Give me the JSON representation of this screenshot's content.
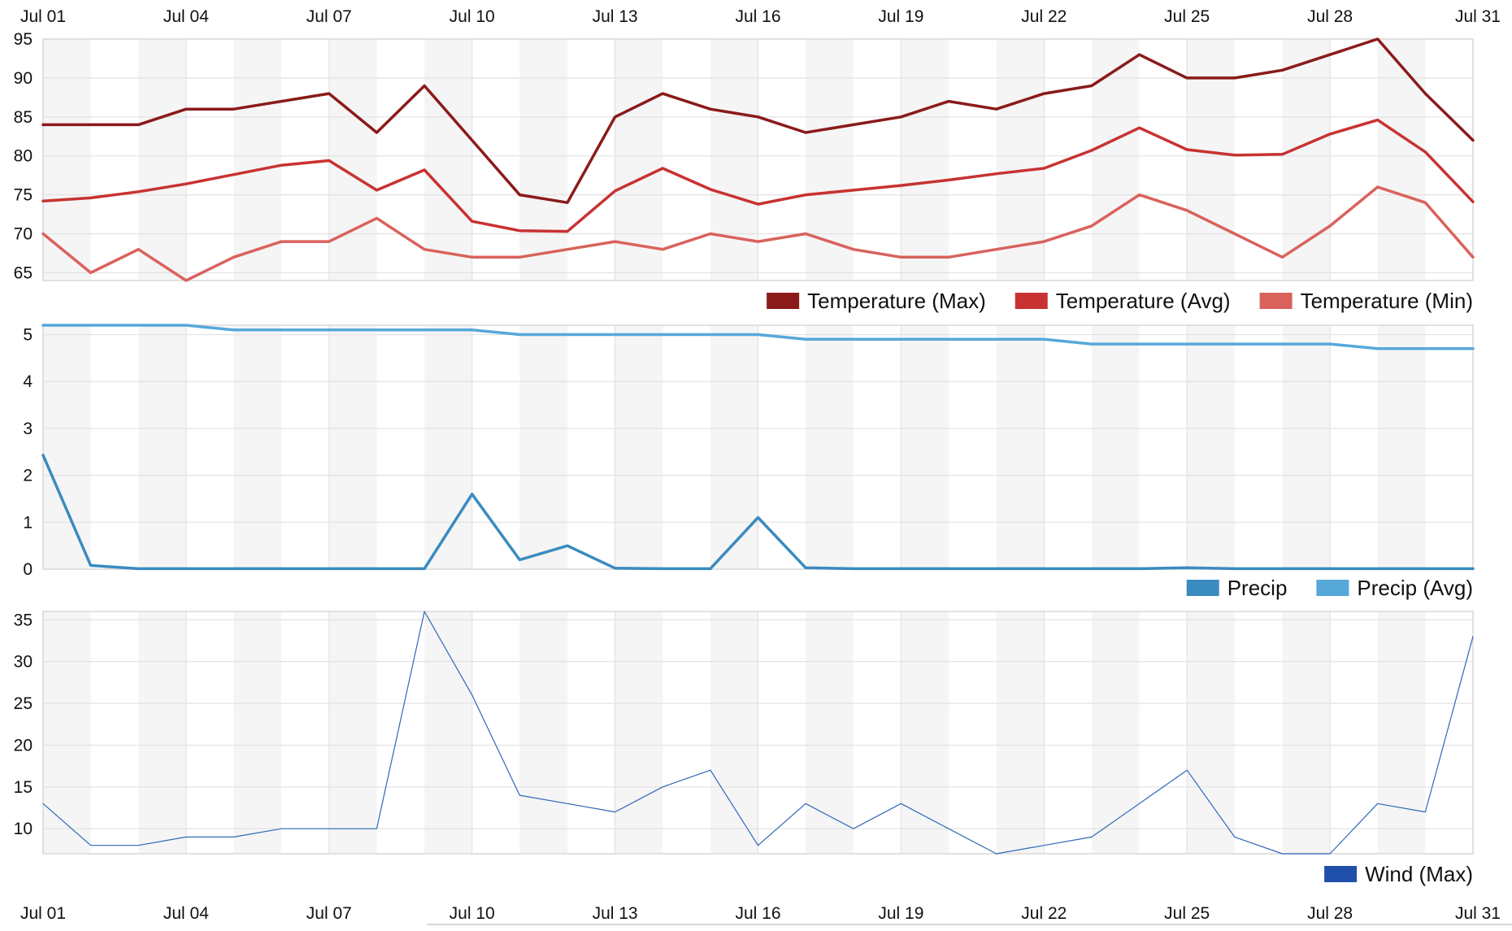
{
  "x_labels": [
    "Jul 01",
    "Jul 04",
    "Jul 07",
    "Jul 10",
    "Jul 13",
    "Jul 16",
    "Jul 19",
    "Jul 22",
    "Jul 25",
    "Jul 28",
    "Jul 31"
  ],
  "chart_data": [
    {
      "type": "line",
      "title": "",
      "xlabel": "",
      "ylabel": "",
      "x": [
        1,
        2,
        3,
        4,
        5,
        6,
        7,
        8,
        9,
        10,
        11,
        12,
        13,
        14,
        15,
        16,
        17,
        18,
        19,
        20,
        21,
        22,
        23,
        24,
        25,
        26,
        27,
        28,
        29,
        30,
        31
      ],
      "x_ticks": [
        "Jul 01",
        "Jul 04",
        "Jul 07",
        "Jul 10",
        "Jul 13",
        "Jul 16",
        "Jul 19",
        "Jul 22",
        "Jul 25",
        "Jul 28",
        "Jul 31"
      ],
      "ylim": [
        64,
        95
      ],
      "y_ticks": [
        65,
        70,
        75,
        80,
        85,
        90,
        95
      ],
      "grid": true,
      "legend": "bottom-right",
      "series": [
        {
          "name": "Temperature (Max)",
          "color": "#8b1a1a",
          "width": 3.5,
          "values": [
            84,
            84,
            84,
            86,
            86,
            87,
            88,
            83,
            89,
            82,
            75,
            74,
            85,
            88,
            86,
            85,
            83,
            84,
            85,
            87,
            86,
            88,
            89,
            93,
            90,
            90,
            91,
            93,
            95,
            88,
            82
          ]
        },
        {
          "name": "Temperature (Avg)",
          "color": "#c83232",
          "width": 3.5,
          "values": [
            74.2,
            74.6,
            75.4,
            76.4,
            77.6,
            78.8,
            79.4,
            75.6,
            78.2,
            71.6,
            70.4,
            70.3,
            75.5,
            78.4,
            75.7,
            73.8,
            75.0,
            75.6,
            76.2,
            76.9,
            77.7,
            78.4,
            80.7,
            83.6,
            80.8,
            80.1,
            80.2,
            82.8,
            84.6,
            80.5,
            74.1
          ]
        },
        {
          "name": "Temperature (Min)",
          "color": "#d9625c",
          "width": 3.5,
          "values": [
            70,
            65,
            68,
            64,
            67,
            69,
            69,
            72,
            68,
            67,
            67,
            68,
            69,
            68,
            70,
            69,
            70,
            68,
            67,
            67,
            68,
            69,
            71,
            75,
            73,
            70,
            67,
            71,
            76,
            74,
            67
          ]
        }
      ]
    },
    {
      "type": "line",
      "title": "",
      "xlabel": "",
      "ylabel": "",
      "x": [
        1,
        2,
        3,
        4,
        5,
        6,
        7,
        8,
        9,
        10,
        11,
        12,
        13,
        14,
        15,
        16,
        17,
        18,
        19,
        20,
        21,
        22,
        23,
        24,
        25,
        26,
        27,
        28,
        29,
        30,
        31
      ],
      "ylim": [
        0,
        5.2
      ],
      "y_ticks": [
        0,
        1,
        2,
        3,
        4,
        5
      ],
      "grid": true,
      "legend": "bottom-right",
      "series": [
        {
          "name": "Precip",
          "color": "#3a8bbf",
          "width": 3.5,
          "values": [
            2.43,
            0.08,
            0.01,
            0.01,
            0.01,
            0.01,
            0.01,
            0.01,
            0.01,
            1.6,
            0.2,
            0.5,
            0.02,
            0.01,
            0.01,
            1.1,
            0.03,
            0.01,
            0.01,
            0.01,
            0.01,
            0.01,
            0.01,
            0.01,
            0.03,
            0.01,
            0.01,
            0.01,
            0.01,
            0.01,
            0.01
          ]
        },
        {
          "name": "Precip (Avg)",
          "color": "#56a8d9",
          "width": 3.5,
          "values": [
            5.2,
            5.2,
            5.2,
            5.2,
            5.1,
            5.1,
            5.1,
            5.1,
            5.1,
            5.1,
            5.0,
            5.0,
            5.0,
            5.0,
            5.0,
            5.0,
            4.9,
            4.9,
            4.9,
            4.9,
            4.9,
            4.9,
            4.8,
            4.8,
            4.8,
            4.8,
            4.8,
            4.8,
            4.7,
            4.7,
            4.7
          ]
        }
      ]
    },
    {
      "type": "line",
      "title": "",
      "xlabel": "",
      "ylabel": "",
      "x": [
        1,
        2,
        3,
        4,
        5,
        6,
        7,
        8,
        9,
        10,
        11,
        12,
        13,
        14,
        15,
        16,
        17,
        18,
        19,
        20,
        21,
        22,
        23,
        24,
        25,
        26,
        27,
        28,
        29,
        30,
        31
      ],
      "ylim": [
        7,
        36
      ],
      "y_ticks": [
        10,
        15,
        20,
        25,
        30,
        35
      ],
      "grid": true,
      "legend": "bottom-right",
      "series": [
        {
          "name": "Wind (Max)",
          "color": "#2e68b8",
          "legend_color": "#1f4fa8",
          "width": 1.2,
          "values": [
            13,
            8,
            8,
            9,
            9,
            10,
            10,
            10,
            36,
            26,
            14,
            13,
            12,
            15,
            17,
            8,
            13,
            10,
            13,
            10,
            7,
            8,
            9,
            13,
            17,
            9,
            7,
            7,
            13,
            12,
            33
          ]
        }
      ]
    }
  ]
}
